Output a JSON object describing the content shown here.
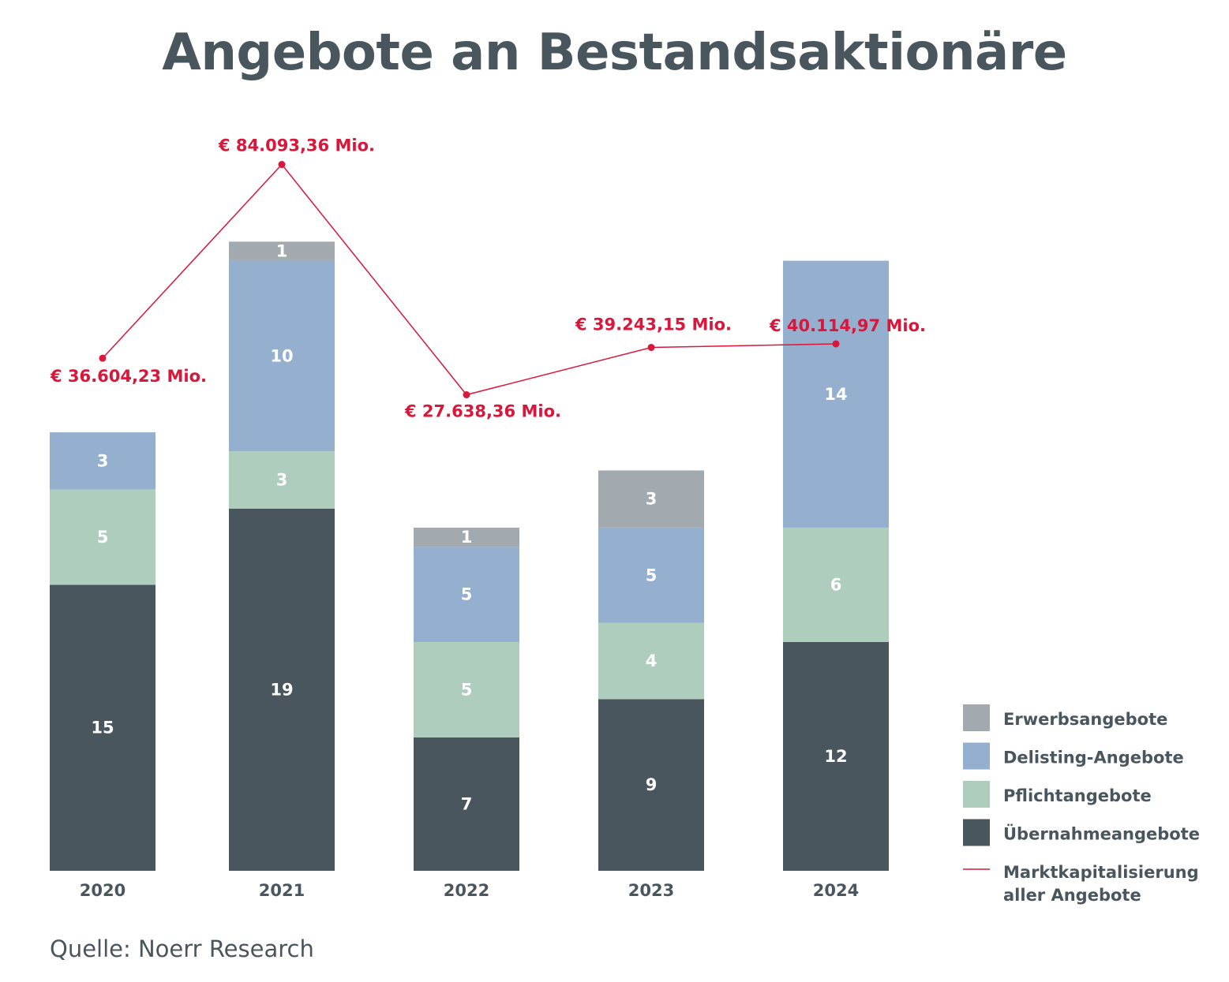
{
  "chart_data": {
    "type": "bar",
    "stacked": true,
    "title": "Angebote an Bestandsaktionäre",
    "source": "Quelle: Noerr Research",
    "categories": [
      "2020",
      "2021",
      "2022",
      "2023",
      "2024"
    ],
    "series": [
      {
        "name": "Übernahmeangebote",
        "color": "#4a565d",
        "values": [
          15,
          19,
          7,
          9,
          12
        ]
      },
      {
        "name": "Pflichtangebote",
        "color": "#afcdbd",
        "values": [
          5,
          3,
          5,
          4,
          6
        ]
      },
      {
        "name": "Delisting-Angebote",
        "color": "#95b0cf",
        "values": [
          3,
          10,
          5,
          5,
          14
        ]
      },
      {
        "name": "Erwerbsangebote",
        "color": "#a2a9af",
        "values": [
          0,
          1,
          1,
          3,
          0
        ]
      }
    ],
    "line": {
      "name": "Marktkapitalisierung aller Angebote",
      "color": "#d8173a",
      "values": [
        36604.23,
        84093.36,
        27638.36,
        39243.15,
        40114.97
      ],
      "labels": [
        "€ 36.604,23 Mio.",
        "€ 84.093,36 Mio.",
        "€ 27.638,36 Mio.",
        "€ 39.243,15 Mio.",
        "€ 40.114,97 Mio."
      ]
    },
    "legend": {
      "placement": "bottom-right",
      "entries": [
        "Erwerbsangebote",
        "Delisting-Angebote",
        "Pflichtangebote",
        "Übernahmeangebote",
        "Marktkapitalisierung aller Angebote"
      ],
      "line_entry_lines": [
        "Marktkapitalisierung",
        "aller Angebote"
      ]
    },
    "ylim": [
      0,
      34
    ],
    "grid": false
  }
}
